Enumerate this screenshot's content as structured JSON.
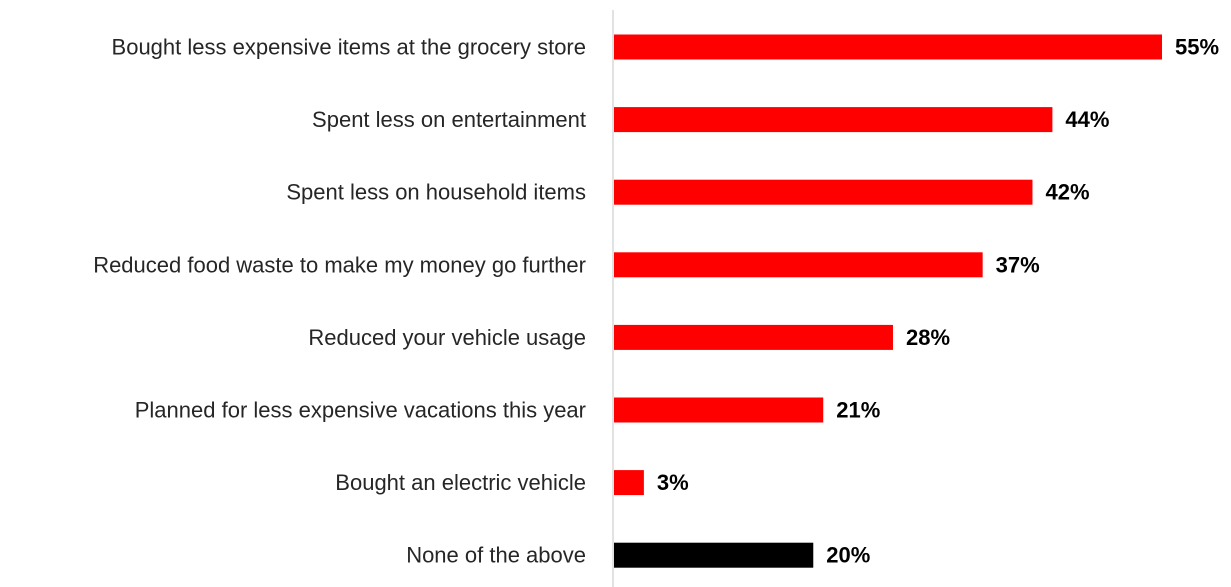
{
  "chart_data": {
    "type": "bar",
    "orientation": "horizontal",
    "categories": [
      "Bought less expensive items at the grocery store",
      "Spent less on entertainment",
      "Spent less on household items",
      "Reduced food waste to make my money go further",
      "Reduced your vehicle usage",
      "Planned for less expensive vacations this year",
      "Bought an electric vehicle",
      "None of the above"
    ],
    "values": [
      55,
      44,
      42,
      37,
      28,
      21,
      3,
      20
    ],
    "value_labels": [
      "55%",
      "44%",
      "42%",
      "37%",
      "28%",
      "21%",
      "3%",
      "20%"
    ],
    "colors": [
      "#ff0000",
      "#ff0000",
      "#ff0000",
      "#ff0000",
      "#ff0000",
      "#ff0000",
      "#ff0000",
      "#000000"
    ],
    "xlim": [
      0,
      55
    ],
    "grid": false,
    "legend": "none"
  }
}
